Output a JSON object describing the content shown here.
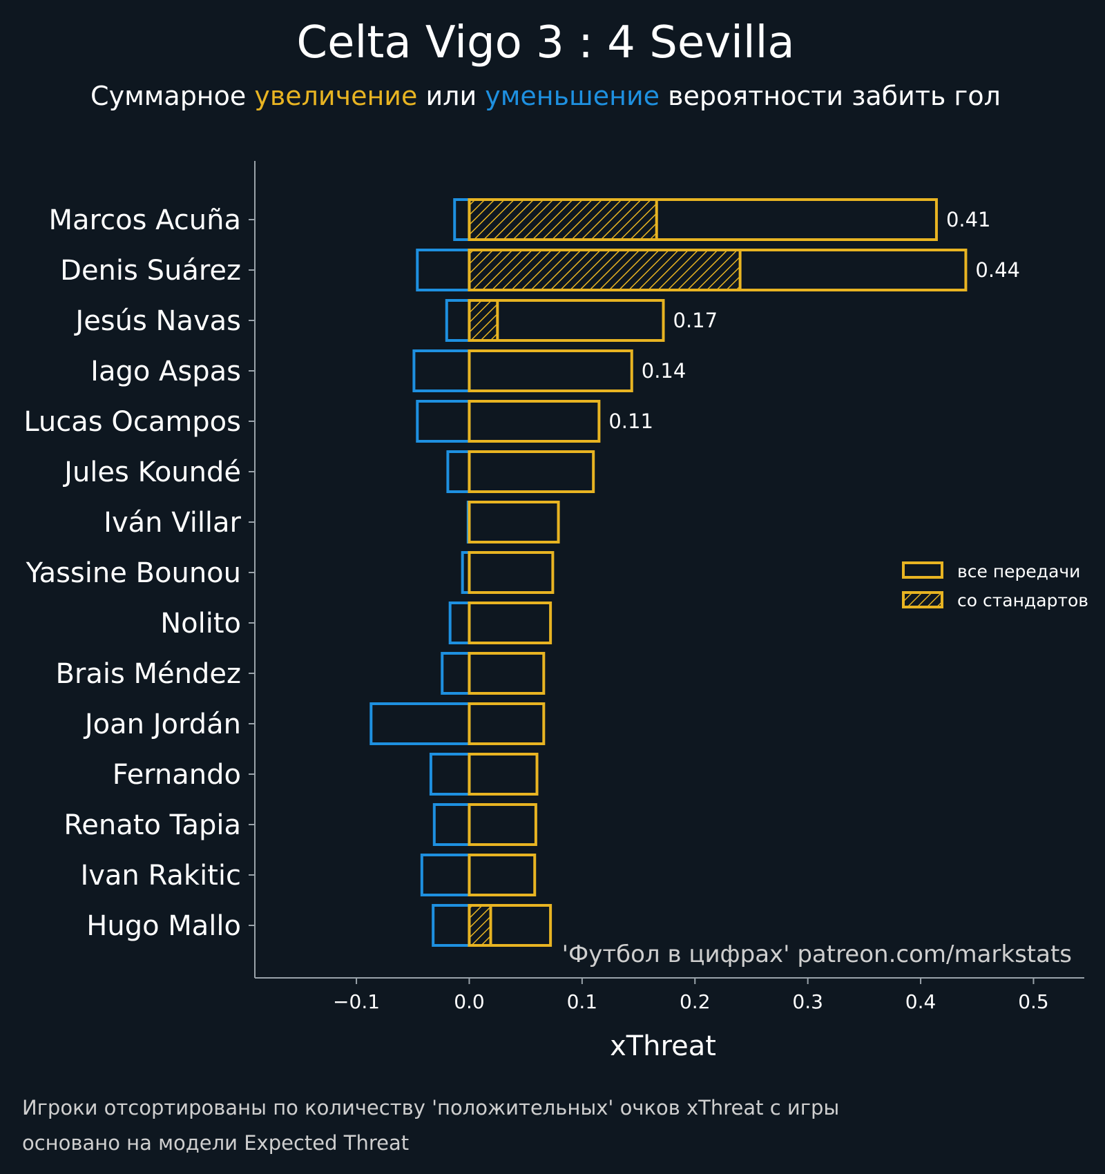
{
  "title": "Celta Vigo 3 : 4 Sevilla",
  "subtitle": {
    "pre": "Суммарное ",
    "increase": "увеличение",
    "mid": " или ",
    "decrease": "уменьшение",
    "post": " вероятности забить гол"
  },
  "colors": {
    "background": "#0e1720",
    "positive": "#e8b422",
    "negative": "#1e90e0",
    "text": "#ffffff",
    "muted": "#cfcfcf",
    "axis": "#9aa3aa"
  },
  "watermark": "'Футбол в цифрах' patreon.com/markstats",
  "footnote": [
    "Игроки отсортированы по количеству 'положительных' очков xThreat с игры",
    "основано на модели Expected Threat"
  ],
  "chart_data": {
    "type": "bar",
    "orientation": "horizontal",
    "xlabel": "xThreat",
    "xlim": [
      -0.19,
      0.545
    ],
    "xticks": [
      -0.1,
      0.0,
      0.1,
      0.2,
      0.3,
      0.4,
      0.5
    ],
    "xtick_labels": [
      "−0.1",
      "0.0",
      "0.1",
      "0.2",
      "0.3",
      "0.4",
      "0.5"
    ],
    "categories": [
      "Marcos Acuña",
      "Denis Suárez",
      "Jesús Navas",
      "Iago Aspas",
      "Lucas Ocampos",
      "Jules Koundé",
      "Iván Villar",
      "Yassine Bounou",
      "Nolito",
      "Brais Méndez",
      "Joan Jordán",
      "Fernando",
      "Renato Tapia",
      "Ivan Rakitic",
      "Hugo Mallo"
    ],
    "series": [
      {
        "name": "все передачи",
        "values": [
          0.414,
          0.44,
          0.172,
          0.144,
          0.115,
          0.11,
          0.079,
          0.074,
          0.072,
          0.066,
          0.066,
          0.06,
          0.059,
          0.058,
          0.072
        ]
      },
      {
        "name": "со стандартов",
        "values": [
          0.166,
          0.24,
          0.025,
          0,
          0,
          0,
          0,
          0,
          0,
          0,
          0,
          0,
          0,
          0,
          0.019
        ]
      },
      {
        "values": [
          -0.013,
          -0.046,
          -0.02,
          -0.049,
          -0.046,
          -0.019,
          -0.001,
          -0.006,
          -0.017,
          -0.024,
          -0.087,
          -0.034,
          -0.031,
          -0.042,
          -0.032
        ]
      }
    ],
    "value_labels": [
      "0.41",
      "0.44",
      "0.17",
      "0.14",
      "0.11"
    ],
    "legend_placement": "right"
  }
}
